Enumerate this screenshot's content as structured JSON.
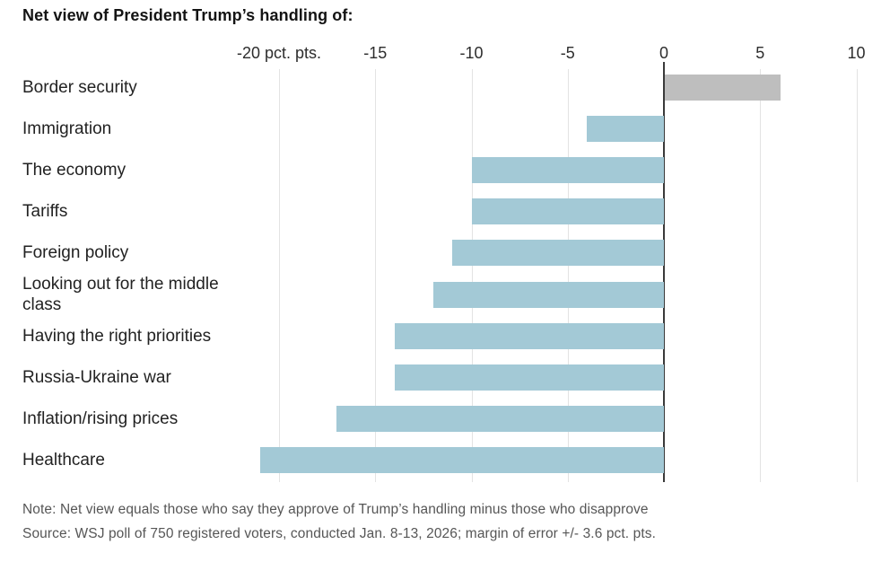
{
  "title": "Net view of President Trump’s handling of:",
  "chart_data": {
    "type": "bar",
    "orientation": "horizontal",
    "title": "Net view of President Trump’s handling of:",
    "categories": [
      "Border security",
      "Immigration",
      "The economy",
      "Tariffs",
      "Foreign policy",
      "Looking out for the middle class",
      "Having the right priorities",
      "Russia-Ukraine war",
      "Inflation/rising prices",
      "Healthcare"
    ],
    "values": [
      6,
      -4,
      -10,
      -10,
      -11,
      -12,
      -14,
      -14,
      -17,
      -21
    ],
    "unit": "pct. pts.",
    "axis": {
      "ticks": [
        -20,
        -15,
        -10,
        -5,
        0,
        5,
        10
      ],
      "tick_labels": [
        "-20 pct. pts.",
        "-15",
        "-10",
        "-5",
        "0",
        "5",
        "10"
      ],
      "xlim": [
        -20,
        10
      ],
      "grid": true
    },
    "colors": {
      "positive_bar": "#bebebe",
      "negative_bar": "#a3c9d6",
      "zero_axis": "#3a3a3a",
      "gridline": "#e3e3e3"
    },
    "legend": null
  },
  "footer": {
    "note": "Note: Net view equals those who say they approve of Trump’s handling minus those who disapprove",
    "source": "Source: WSJ poll of 750 registered voters, conducted Jan. 8-13, 2026; margin of error +/- 3.6 pct. pts."
  }
}
